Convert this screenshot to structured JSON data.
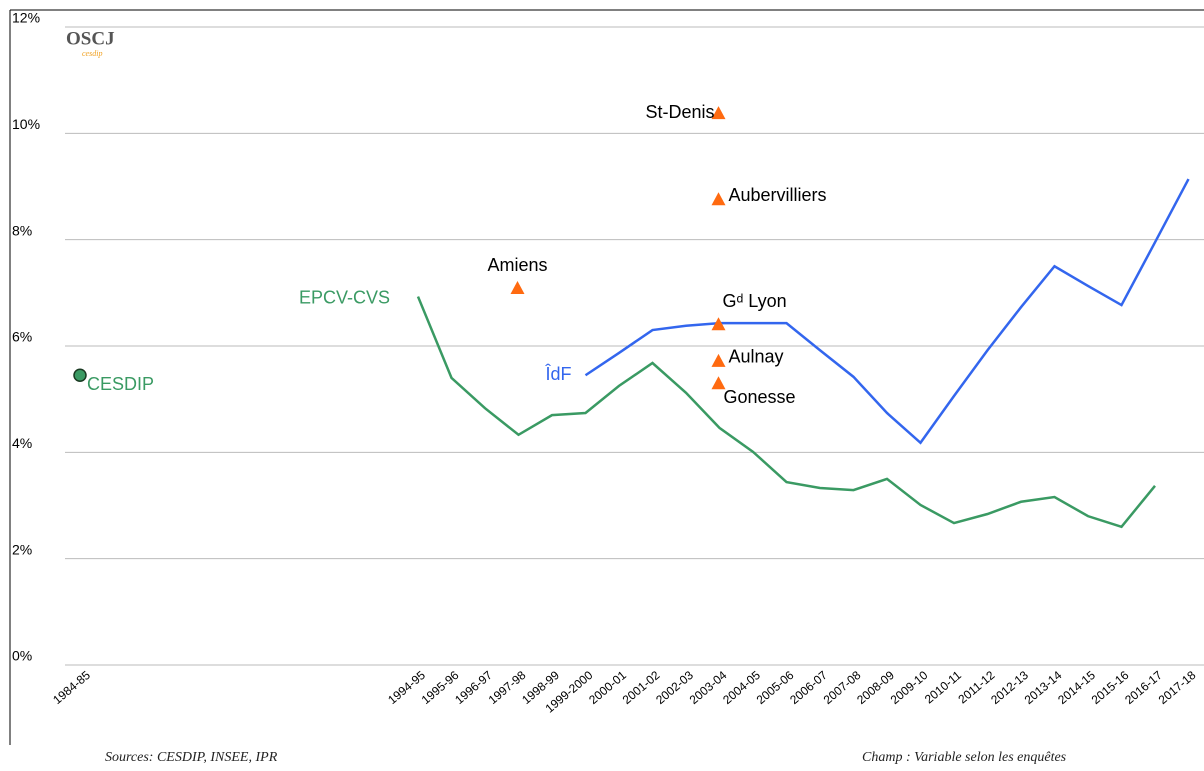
{
  "chart_data": {
    "type": "line",
    "logo_text": "OSCJ",
    "logo_subtext": "cesdip",
    "source": "Sources: CESDIP, INSEE, IPR",
    "note": "Champ : Variable selon les enquêtes",
    "categories": [
      "1984-85",
      null,
      null,
      null,
      null,
      null,
      null,
      null,
      null,
      null,
      "1994-95",
      "1995-96",
      "1996-97",
      "1997-98",
      "1998-99",
      "1999-2000",
      "2000-01",
      "2001-02",
      "2002-03",
      "2003-04",
      "2004-05",
      "2005-06",
      "2006-07",
      "2007-08",
      "2008-09",
      "2009-10",
      "2010-11",
      "2011-12",
      "2012-13",
      "2013-14",
      "2014-15",
      "2015-16",
      "2016-17",
      "2017-18"
    ],
    "series": [
      {
        "name": "EPCV-CVS",
        "color": "#3a9a63",
        "values": [
          null,
          null,
          null,
          null,
          null,
          null,
          null,
          null,
          null,
          null,
          6.93,
          5.4,
          4.83,
          4.33,
          4.7,
          4.74,
          5.25,
          5.68,
          5.12,
          4.46,
          4.01,
          3.44,
          3.33,
          3.29,
          3.5,
          3.01,
          2.67,
          2.84,
          3.07,
          3.16,
          2.8,
          2.6,
          3.37,
          null
        ]
      },
      {
        "name": "ÎdF",
        "color": "#3366ee",
        "values": [
          null,
          null,
          null,
          null,
          null,
          null,
          null,
          null,
          null,
          null,
          null,
          null,
          null,
          null,
          null,
          5.45,
          5.87,
          6.3,
          6.38,
          6.43,
          6.43,
          6.43,
          5.92,
          5.42,
          4.74,
          4.18,
          5.06,
          5.92,
          6.73,
          7.5,
          7.13,
          6.77,
          7.95,
          9.14
        ]
      },
      {
        "name": "CESDIP",
        "color": "#3a9a63",
        "marker": "circle",
        "values": [
          5.45,
          null,
          null,
          null,
          null,
          null,
          null,
          null,
          null,
          null,
          null,
          null,
          null,
          null,
          null,
          null,
          null,
          null,
          null,
          null,
          null,
          null,
          null,
          null,
          null,
          null,
          null,
          null,
          null,
          null,
          null,
          null,
          null,
          null
        ]
      }
    ],
    "point_markers": [
      {
        "label": "Amiens",
        "category": "1997-98",
        "value": 7.09
      },
      {
        "label": "St-Denis",
        "category": "2003-04",
        "value": 10.38
      },
      {
        "label": "Aubervilliers",
        "category": "2003-04",
        "value": 8.76
      },
      {
        "label": "Gᵈ Lyon",
        "category": "2003-04",
        "value": 6.41
      },
      {
        "label": "Aulnay",
        "category": "2003-04",
        "value": 5.72
      },
      {
        "label": "Gonesse",
        "category": "2003-04",
        "value": 5.3
      }
    ],
    "point_marker_color": "#ff6a10",
    "ylim": [
      0,
      12
    ],
    "yticks": [
      {
        "value": 0,
        "label": "0%"
      },
      {
        "value": 2,
        "label": "2%"
      },
      {
        "value": 4,
        "label": "4%"
      },
      {
        "value": 6,
        "label": "6%"
      },
      {
        "value": 8,
        "label": "8%"
      },
      {
        "value": 10,
        "label": "10%"
      },
      {
        "value": 12,
        "label": "12%"
      }
    ],
    "grid": true
  }
}
